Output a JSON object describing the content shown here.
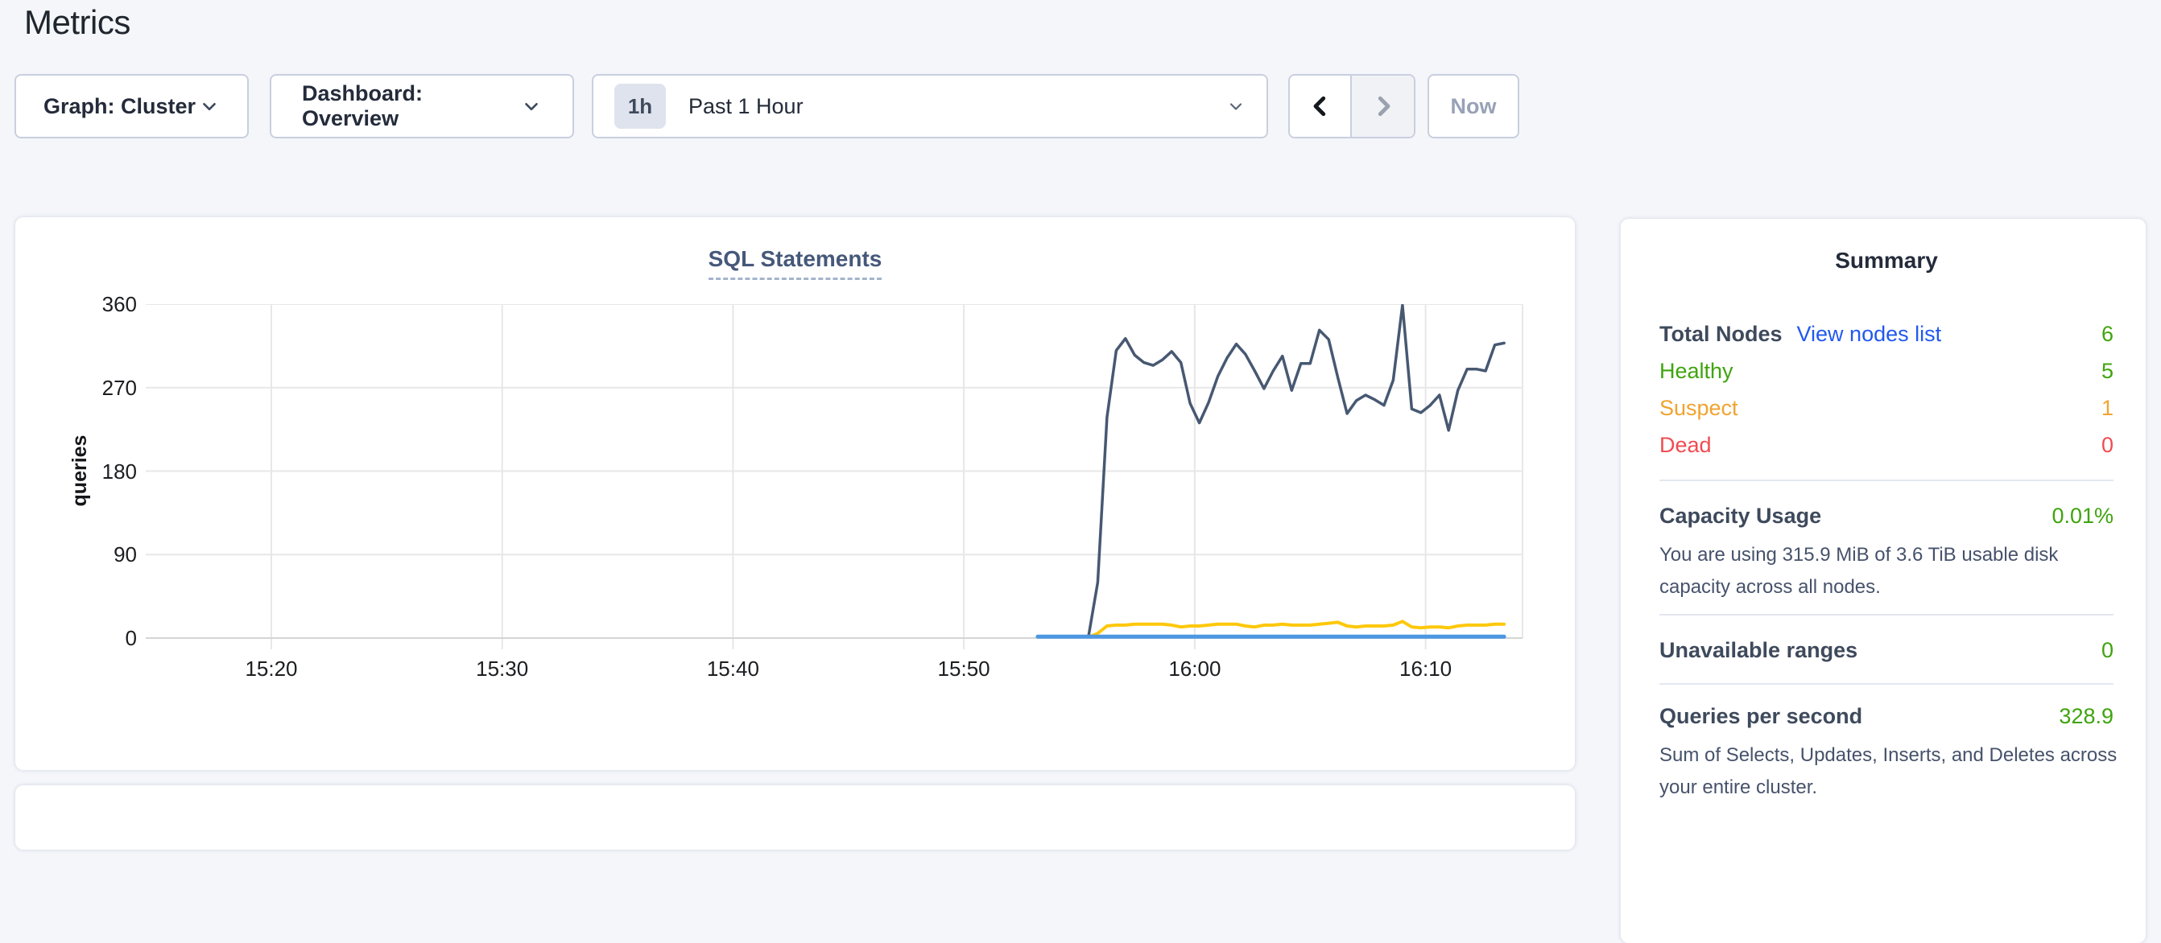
{
  "page": {
    "title": "Metrics"
  },
  "toolbar": {
    "graph_dropdown": {
      "label": "Graph: Cluster"
    },
    "dashboard_dropdown": {
      "label": "Dashboard: Overview"
    },
    "time_picker": {
      "badge": "1h",
      "label": "Past 1 Hour"
    },
    "now_button": {
      "label": "Now"
    }
  },
  "colors": {
    "green": "#3fa40d",
    "orange": "#f0a330",
    "red": "#f04c51",
    "link_blue": "#2159f0"
  },
  "chart_data": {
    "type": "line",
    "title": "SQL Statements",
    "ylabel": "queries",
    "ylim": [
      0,
      360
    ],
    "yticks": [
      0,
      90,
      180,
      270,
      360
    ],
    "xticks": [
      {
        "label": "15:20",
        "t": 20
      },
      {
        "label": "15:30",
        "t": 30
      },
      {
        "label": "15:40",
        "t": 40
      },
      {
        "label": "15:50",
        "t": 50
      },
      {
        "label": "16:00",
        "t": 60
      },
      {
        "label": "16:10",
        "t": 70
      }
    ],
    "x_domain": [
      14.56,
      74.2
    ],
    "x_unit": "minutes-after-15:00",
    "grid": true,
    "legend": "none",
    "series": [
      {
        "name": "series-dark-blue",
        "color": "#475872",
        "width": 3.5,
        "points": [
          [
            55.4,
            2
          ],
          [
            55.8,
            60
          ],
          [
            56.2,
            238
          ],
          [
            56.6,
            310
          ],
          [
            57.0,
            323
          ],
          [
            57.4,
            305
          ],
          [
            57.8,
            297
          ],
          [
            58.2,
            294
          ],
          [
            58.6,
            300
          ],
          [
            59.0,
            309
          ],
          [
            59.4,
            297
          ],
          [
            59.8,
            253
          ],
          [
            60.2,
            232
          ],
          [
            60.6,
            254
          ],
          [
            61.0,
            282
          ],
          [
            61.4,
            302
          ],
          [
            61.8,
            317
          ],
          [
            62.2,
            306
          ],
          [
            62.6,
            288
          ],
          [
            63.0,
            269
          ],
          [
            63.4,
            288
          ],
          [
            63.8,
            304
          ],
          [
            64.2,
            267
          ],
          [
            64.6,
            296
          ],
          [
            65.0,
            296
          ],
          [
            65.4,
            332
          ],
          [
            65.8,
            322
          ],
          [
            66.2,
            281
          ],
          [
            66.6,
            242
          ],
          [
            67.0,
            256
          ],
          [
            67.4,
            262
          ],
          [
            67.8,
            257
          ],
          [
            68.2,
            251
          ],
          [
            68.6,
            278
          ],
          [
            69.0,
            359
          ],
          [
            69.4,
            247
          ],
          [
            69.8,
            243
          ],
          [
            70.2,
            251
          ],
          [
            70.6,
            262
          ],
          [
            71.0,
            224
          ],
          [
            71.4,
            267
          ],
          [
            71.8,
            290
          ],
          [
            72.2,
            290
          ],
          [
            72.6,
            288
          ],
          [
            73.0,
            316
          ],
          [
            73.4,
            318
          ]
        ]
      },
      {
        "name": "series-yellow",
        "color": "#fec80a",
        "width": 4,
        "points": [
          [
            55.4,
            1
          ],
          [
            55.8,
            5
          ],
          [
            56.2,
            13
          ],
          [
            56.6,
            14
          ],
          [
            57.0,
            14
          ],
          [
            57.4,
            15
          ],
          [
            57.8,
            15
          ],
          [
            58.2,
            15
          ],
          [
            58.6,
            15
          ],
          [
            59.0,
            14
          ],
          [
            59.4,
            12
          ],
          [
            59.8,
            13
          ],
          [
            60.2,
            13
          ],
          [
            60.6,
            14
          ],
          [
            61.0,
            15
          ],
          [
            61.4,
            15
          ],
          [
            61.8,
            15
          ],
          [
            62.2,
            13
          ],
          [
            62.6,
            12
          ],
          [
            63.0,
            14
          ],
          [
            63.4,
            14
          ],
          [
            63.8,
            15
          ],
          [
            64.2,
            14
          ],
          [
            64.6,
            14
          ],
          [
            65.0,
            14
          ],
          [
            65.4,
            15
          ],
          [
            65.8,
            16
          ],
          [
            66.2,
            17
          ],
          [
            66.6,
            13
          ],
          [
            67.0,
            12
          ],
          [
            67.4,
            13
          ],
          [
            67.8,
            13
          ],
          [
            68.2,
            13
          ],
          [
            68.6,
            14
          ],
          [
            69.0,
            18
          ],
          [
            69.4,
            12
          ],
          [
            69.8,
            11
          ],
          [
            70.2,
            12
          ],
          [
            70.6,
            12
          ],
          [
            71.0,
            11
          ],
          [
            71.4,
            13
          ],
          [
            71.8,
            14
          ],
          [
            72.2,
            14
          ],
          [
            72.6,
            14
          ],
          [
            73.0,
            15
          ],
          [
            73.4,
            15
          ]
        ]
      },
      {
        "name": "series-light-blue",
        "color": "#4d97e2",
        "width": 5,
        "points": [
          [
            53.2,
            1.5
          ],
          [
            73.4,
            1.5
          ]
        ]
      }
    ]
  },
  "summary": {
    "title": "Summary",
    "total_nodes": {
      "label": "Total Nodes",
      "link": "View nodes list",
      "value": "6"
    },
    "node_rows": [
      {
        "label": "Healthy",
        "value": "5",
        "color": "green"
      },
      {
        "label": "Suspect",
        "value": "1",
        "color": "orange"
      },
      {
        "label": "Dead",
        "value": "0",
        "color": "red"
      }
    ],
    "capacity": {
      "label": "Capacity Usage",
      "value": "0.01%",
      "description": "You are using 315.9 MiB of 3.6 TiB usable disk capacity across all nodes."
    },
    "unavailable": {
      "label": "Unavailable ranges",
      "value": "0"
    },
    "qps": {
      "label": "Queries per second",
      "value": "328.9",
      "description": "Sum of Selects, Updates, Inserts, and Deletes across your entire cluster."
    }
  }
}
